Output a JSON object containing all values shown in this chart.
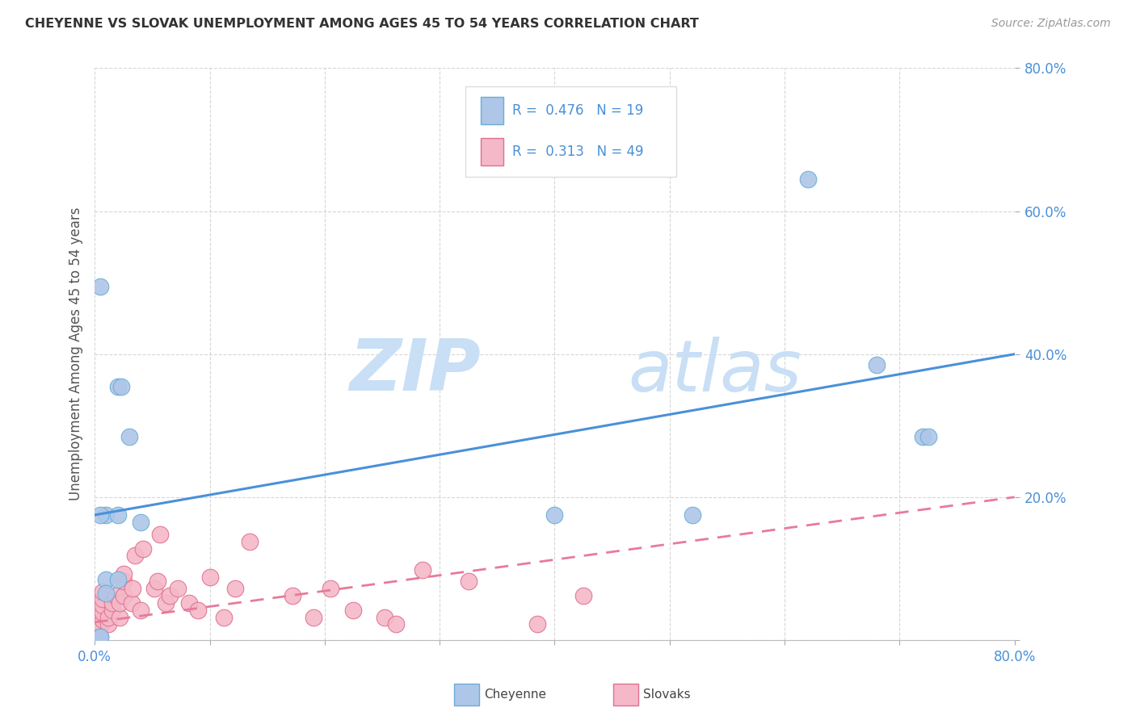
{
  "title": "CHEYENNE VS SLOVAK UNEMPLOYMENT AMONG AGES 45 TO 54 YEARS CORRELATION CHART",
  "source": "Source: ZipAtlas.com",
  "ylabel": "Unemployment Among Ages 45 to 54 years",
  "xlim": [
    0.0,
    0.8
  ],
  "ylim": [
    0.0,
    0.8
  ],
  "xticks": [
    0.0,
    0.1,
    0.2,
    0.3,
    0.4,
    0.5,
    0.6,
    0.7,
    0.8
  ],
  "yticks": [
    0.0,
    0.2,
    0.4,
    0.6,
    0.8
  ],
  "xtick_labels": [
    "0.0%",
    "",
    "",
    "",
    "",
    "",
    "",
    "",
    "80.0%"
  ],
  "ytick_labels": [
    "",
    "20.0%",
    "40.0%",
    "60.0%",
    "80.0%"
  ],
  "cheyenne_color": "#aec6e8",
  "cheyenne_edge": "#6aaed6",
  "slovak_color": "#f4b8c8",
  "slovak_edge": "#e07090",
  "line_cheyenne_color": "#4a90d9",
  "line_slovak_color": "#e87a9a",
  "legend_r_cheyenne": "0.476",
  "legend_n_cheyenne": "19",
  "legend_r_slovak": "0.313",
  "legend_n_slovak": "49",
  "watermark_zip": "ZIP",
  "watermark_atlas": "atlas",
  "cheyenne_x": [
    0.005,
    0.01,
    0.02,
    0.023,
    0.005,
    0.01,
    0.02,
    0.03,
    0.005,
    0.02,
    0.04,
    0.4,
    0.62,
    0.68,
    0.72,
    0.725,
    0.005,
    0.01,
    0.52
  ],
  "cheyenne_y": [
    0.005,
    0.175,
    0.355,
    0.355,
    0.495,
    0.085,
    0.085,
    0.285,
    0.175,
    0.175,
    0.165,
    0.175,
    0.645,
    0.385,
    0.285,
    0.285,
    0.005,
    0.065,
    0.175
  ],
  "slovak_x": [
    0.0,
    0.0,
    0.0,
    0.003,
    0.003,
    0.005,
    0.005,
    0.007,
    0.007,
    0.007,
    0.007,
    0.007,
    0.012,
    0.012,
    0.015,
    0.015,
    0.018,
    0.022,
    0.022,
    0.025,
    0.025,
    0.025,
    0.032,
    0.033,
    0.035,
    0.04,
    0.042,
    0.052,
    0.055,
    0.057,
    0.062,
    0.065,
    0.072,
    0.082,
    0.09,
    0.1,
    0.112,
    0.122,
    0.135,
    0.172,
    0.19,
    0.205,
    0.225,
    0.252,
    0.262,
    0.285,
    0.325,
    0.385,
    0.425
  ],
  "slovak_y": [
    0.002,
    0.002,
    0.005,
    0.01,
    0.012,
    0.018,
    0.022,
    0.028,
    0.038,
    0.048,
    0.058,
    0.068,
    0.022,
    0.032,
    0.042,
    0.052,
    0.062,
    0.032,
    0.052,
    0.062,
    0.082,
    0.092,
    0.052,
    0.072,
    0.118,
    0.042,
    0.128,
    0.072,
    0.082,
    0.148,
    0.052,
    0.062,
    0.072,
    0.052,
    0.042,
    0.088,
    0.032,
    0.072,
    0.138,
    0.062,
    0.032,
    0.072,
    0.042,
    0.032,
    0.022,
    0.098,
    0.082,
    0.022,
    0.062
  ],
  "cheyenne_trend_x": [
    0.0,
    0.8
  ],
  "cheyenne_trend_y": [
    0.175,
    0.4
  ],
  "slovak_trend_x": [
    0.0,
    0.8
  ],
  "slovak_trend_y": [
    0.025,
    0.2
  ],
  "background_color": "#ffffff",
  "grid_color": "#cccccc"
}
